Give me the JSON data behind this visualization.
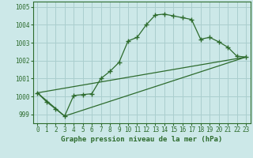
{
  "title": "Graphe pression niveau de la mer (hPa)",
  "background_color": "#cce8e8",
  "grid_color": "#aacece",
  "line_color": "#2d6b2d",
  "xlim": [
    -0.5,
    23.5
  ],
  "ylim": [
    998.5,
    1005.3
  ],
  "yticks": [
    999,
    1000,
    1001,
    1002,
    1003,
    1004,
    1005
  ],
  "xticks": [
    0,
    1,
    2,
    3,
    4,
    5,
    6,
    7,
    8,
    9,
    10,
    11,
    12,
    13,
    14,
    15,
    16,
    17,
    18,
    19,
    20,
    21,
    22,
    23
  ],
  "series1_x": [
    0,
    1,
    2,
    3,
    4,
    5,
    6,
    7,
    8,
    9,
    10,
    11,
    12,
    13,
    14,
    15,
    16,
    17,
    18,
    19,
    20,
    21,
    22,
    23
  ],
  "series1_y": [
    1000.2,
    999.7,
    999.3,
    998.9,
    1000.05,
    1000.1,
    1000.15,
    1001.0,
    1001.4,
    1001.9,
    1003.1,
    1003.3,
    1004.0,
    1004.55,
    1004.6,
    1004.5,
    1004.4,
    1004.3,
    1003.2,
    1003.3,
    1003.05,
    1002.75,
    1002.25,
    1002.2
  ],
  "series2_x": [
    0,
    3,
    23
  ],
  "series2_y": [
    1000.2,
    998.9,
    1002.2
  ],
  "series3_x": [
    0,
    23
  ],
  "series3_y": [
    1000.2,
    1002.2
  ],
  "tick_fontsize": 5.5,
  "label_fontsize": 6.5
}
